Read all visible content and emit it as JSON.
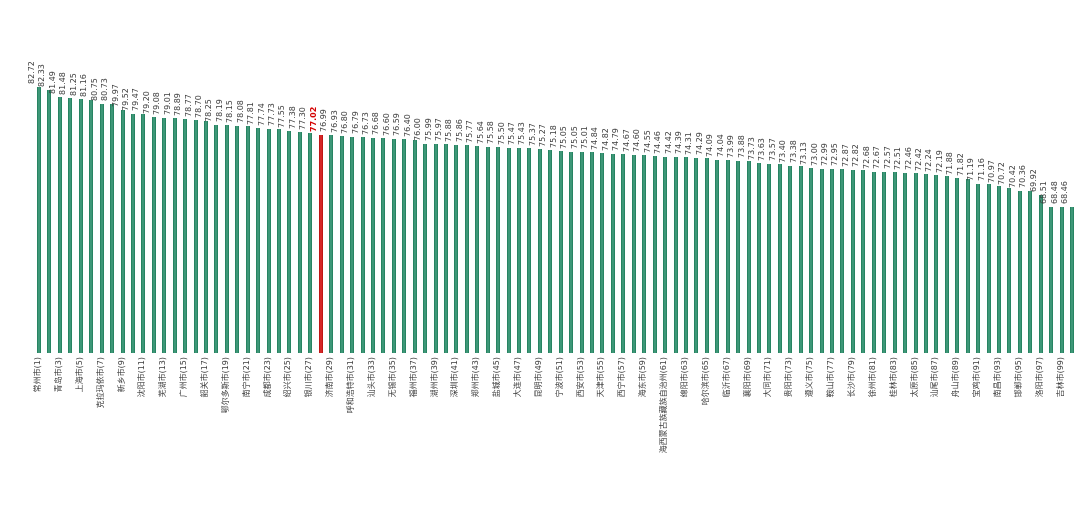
{
  "chart_data": {
    "type": "bar",
    "title": "",
    "xlabel": "",
    "ylabel": "",
    "legend": [],
    "grid": false,
    "axis_lines": false,
    "background": "#ffffff",
    "bar_color": "#2c8d68",
    "highlight_color": "#c50000",
    "label_color": "#3c3c3c",
    "highlight_rank": 28,
    "baseline_value": 51.1,
    "ylim": [
      51.1,
      84
    ],
    "values": [
      82.72,
      82.33,
      81.49,
      81.48,
      81.25,
      81.16,
      80.75,
      80.73,
      79.97,
      79.52,
      79.47,
      79.2,
      79.08,
      79.01,
      78.89,
      78.77,
      78.7,
      78.25,
      78.19,
      78.15,
      78.08,
      77.81,
      77.74,
      77.73,
      77.55,
      77.38,
      77.3,
      77.02,
      76.99,
      76.93,
      76.8,
      76.79,
      76.73,
      76.68,
      76.6,
      76.59,
      76.4,
      76.0,
      75.99,
      75.97,
      75.88,
      75.86,
      75.77,
      75.64,
      75.58,
      75.5,
      75.47,
      75.43,
      75.37,
      75.27,
      75.18,
      75.05,
      75.05,
      75.01,
      74.84,
      74.82,
      74.79,
      74.67,
      74.6,
      74.55,
      74.46,
      74.42,
      74.39,
      74.31,
      74.29,
      74.09,
      74.04,
      73.99,
      73.88,
      73.73,
      73.63,
      73.57,
      73.4,
      73.38,
      73.13,
      73.0,
      72.99,
      72.95,
      72.87,
      72.82,
      72.68,
      72.67,
      72.57,
      72.51,
      72.46,
      72.42,
      72.24,
      72.19,
      71.88,
      71.82,
      71.19,
      71.16,
      70.97,
      70.72,
      70.42,
      70.36,
      69.92,
      68.51,
      68.48,
      68.46
    ],
    "city_labels": [
      {
        "rank": 1,
        "name": "常州市"
      },
      {
        "rank": 3,
        "name": "青岛市"
      },
      {
        "rank": 5,
        "name": "上海市"
      },
      {
        "rank": 7,
        "name": "克拉玛依市"
      },
      {
        "rank": 9,
        "name": "新乡市"
      },
      {
        "rank": 11,
        "name": "沈阳市"
      },
      {
        "rank": 13,
        "name": "芜湖市"
      },
      {
        "rank": 15,
        "name": "广州市"
      },
      {
        "rank": 17,
        "name": "韶关市"
      },
      {
        "rank": 19,
        "name": "鄂尔多斯市"
      },
      {
        "rank": 21,
        "name": "南宁市"
      },
      {
        "rank": 23,
        "name": "成都市"
      },
      {
        "rank": 25,
        "name": "绍兴市"
      },
      {
        "rank": 27,
        "name": "银川市"
      },
      {
        "rank": 29,
        "name": "济南市"
      },
      {
        "rank": 31,
        "name": "呼和浩特市"
      },
      {
        "rank": 33,
        "name": "汕头市"
      },
      {
        "rank": 35,
        "name": "无锡市"
      },
      {
        "rank": 37,
        "name": "福州市"
      },
      {
        "rank": 39,
        "name": "湖州市"
      },
      {
        "rank": 41,
        "name": "深圳市"
      },
      {
        "rank": 43,
        "name": "郑州市"
      },
      {
        "rank": 45,
        "name": "盐城市"
      },
      {
        "rank": 47,
        "name": "大连市"
      },
      {
        "rank": 49,
        "name": "昆明市"
      },
      {
        "rank": 51,
        "name": "宁波市"
      },
      {
        "rank": 53,
        "name": "西安市"
      },
      {
        "rank": 55,
        "name": "天津市"
      },
      {
        "rank": 57,
        "name": "西宁市"
      },
      {
        "rank": 59,
        "name": "海东市"
      },
      {
        "rank": 61,
        "name": "海西蒙古族藏族自治州"
      },
      {
        "rank": 63,
        "name": "绵阳市"
      },
      {
        "rank": 65,
        "name": "哈尔滨市"
      },
      {
        "rank": 67,
        "name": "临沂市"
      },
      {
        "rank": 69,
        "name": "襄阳市"
      },
      {
        "rank": 71,
        "name": "大同市"
      },
      {
        "rank": 73,
        "name": "贵阳市"
      },
      {
        "rank": 75,
        "name": "遵义市"
      },
      {
        "rank": 77,
        "name": "鞍山市"
      },
      {
        "rank": 79,
        "name": "长沙市"
      },
      {
        "rank": 81,
        "name": "徐州市"
      },
      {
        "rank": 83,
        "name": "桂林市"
      },
      {
        "rank": 85,
        "name": "太原市"
      },
      {
        "rank": 87,
        "name": "汕尾市"
      },
      {
        "rank": 89,
        "name": "舟山市"
      },
      {
        "rank": 91,
        "name": "宝鸡市"
      },
      {
        "rank": 93,
        "name": "南昌市"
      },
      {
        "rank": 95,
        "name": "邯郸市"
      },
      {
        "rank": 97,
        "name": "洛阳市"
      },
      {
        "rank": 99,
        "name": "吉林市"
      }
    ]
  },
  "layout_note": ""
}
